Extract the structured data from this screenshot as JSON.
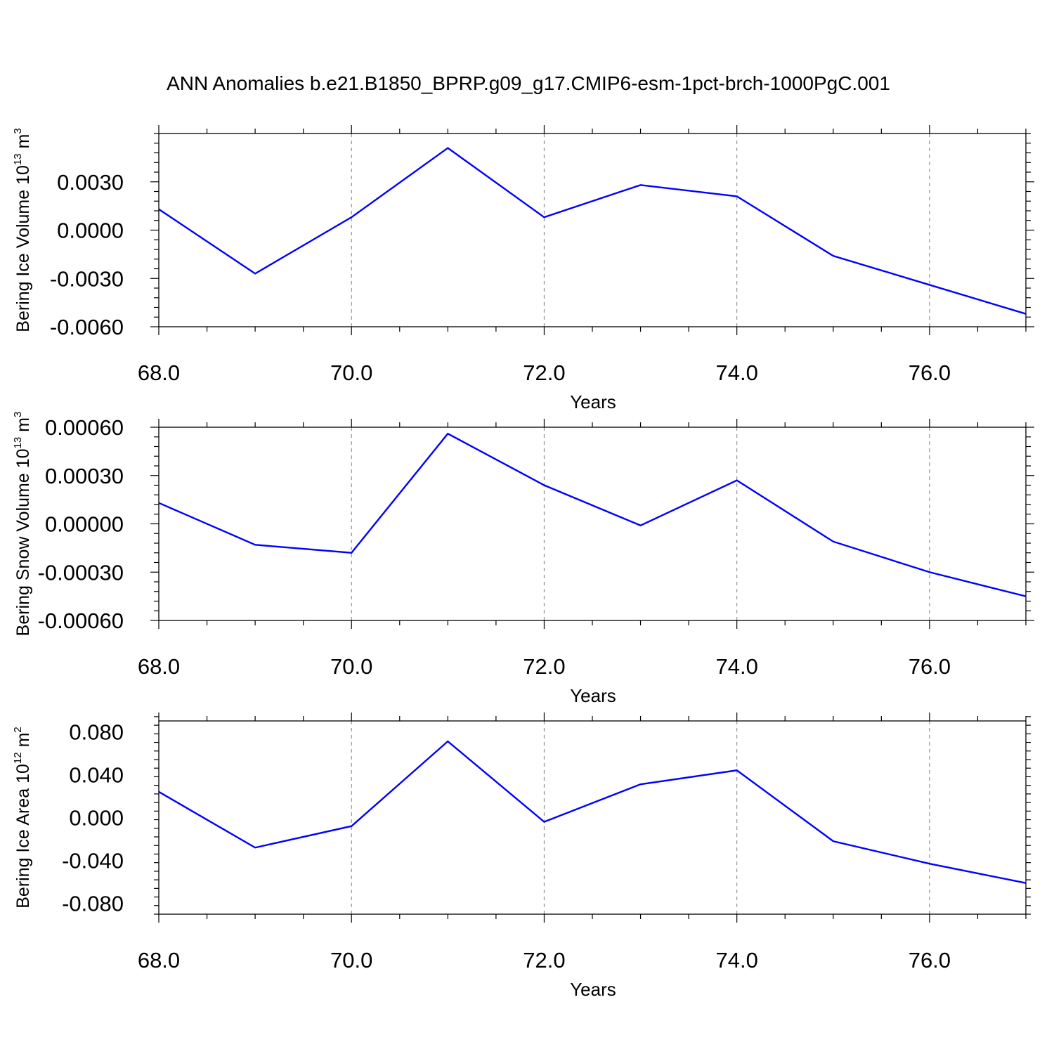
{
  "title": "ANN Anomalies b.e21.B1850_BPRP.g09_g17.CMIP6-esm-1pct-brch-1000PgC.001",
  "colors": {
    "line": "#0000ff",
    "axis": "#000000",
    "grid": "#888888"
  },
  "chart_data": [
    {
      "type": "line",
      "xlabel": "Years",
      "ylabel": {
        "text": "Bering Ice Volume 10",
        "sup1": "13",
        "unit": " m",
        "sup2": "3"
      },
      "xlim": [
        68,
        77
      ],
      "ylim": [
        -0.006,
        0.006
      ],
      "xticks": [
        68,
        70,
        72,
        74,
        76
      ],
      "xtick_labels": [
        "68.0",
        "70.0",
        "72.0",
        "74.0",
        "76.0"
      ],
      "yticks": [
        -0.006,
        -0.003,
        0.0,
        0.003
      ],
      "ytick_labels": [
        "-0.0060",
        "-0.0030",
        "0.0000",
        "0.0030"
      ],
      "grid": "vertical dashed at major x ticks",
      "series": [
        {
          "x": [
            68,
            69,
            70,
            71,
            72,
            73,
            74,
            75,
            76,
            77
          ],
          "y": [
            0.0013,
            -0.0027,
            0.0008,
            0.0051,
            0.0008,
            0.0028,
            0.0021,
            -0.0016,
            -0.0034,
            -0.0052
          ]
        }
      ]
    },
    {
      "type": "line",
      "xlabel": "Years",
      "ylabel": {
        "text": "Bering Snow Volume 10",
        "sup1": "13",
        "unit": " m",
        "sup2": "3"
      },
      "xlim": [
        68,
        77
      ],
      "ylim": [
        -0.0006,
        0.0006
      ],
      "xticks": [
        68,
        70,
        72,
        74,
        76
      ],
      "xtick_labels": [
        "68.0",
        "70.0",
        "72.0",
        "74.0",
        "76.0"
      ],
      "yticks": [
        -0.0006,
        -0.0003,
        0.0,
        0.0003,
        0.0006
      ],
      "ytick_labels": [
        "-0.00060",
        "-0.00030",
        "0.00000",
        "0.00030",
        "0.00060"
      ],
      "grid": "vertical dashed at major x ticks",
      "series": [
        {
          "x": [
            68,
            69,
            70,
            71,
            72,
            73,
            74,
            75,
            76,
            77
          ],
          "y": [
            0.00013,
            -0.00013,
            -0.00018,
            0.00056,
            0.00024,
            -1e-05,
            0.00027,
            -0.00011,
            -0.0003,
            -0.00045
          ]
        }
      ]
    },
    {
      "type": "line",
      "xlabel": "Years",
      "ylabel": {
        "text": "Bering Ice Area 10",
        "sup1": "12",
        "unit": " m",
        "sup2": "2"
      },
      "xlim": [
        68,
        77
      ],
      "ylim": [
        -0.09,
        0.09
      ],
      "xticks": [
        68,
        70,
        72,
        74,
        76
      ],
      "xtick_labels": [
        "68.0",
        "70.0",
        "72.0",
        "74.0",
        "76.0"
      ],
      "yticks": [
        -0.08,
        -0.04,
        0.0,
        0.04,
        0.08
      ],
      "ytick_labels": [
        "-0.080",
        "-0.040",
        "0.000",
        "0.040",
        "0.080"
      ],
      "grid": "vertical dashed at major x ticks",
      "series": [
        {
          "x": [
            68,
            69,
            70,
            71,
            72,
            73,
            74,
            75,
            76,
            77
          ],
          "y": [
            0.024,
            -0.028,
            -0.008,
            0.071,
            -0.004,
            0.031,
            0.044,
            -0.022,
            -0.043,
            -0.061
          ]
        }
      ]
    }
  ]
}
